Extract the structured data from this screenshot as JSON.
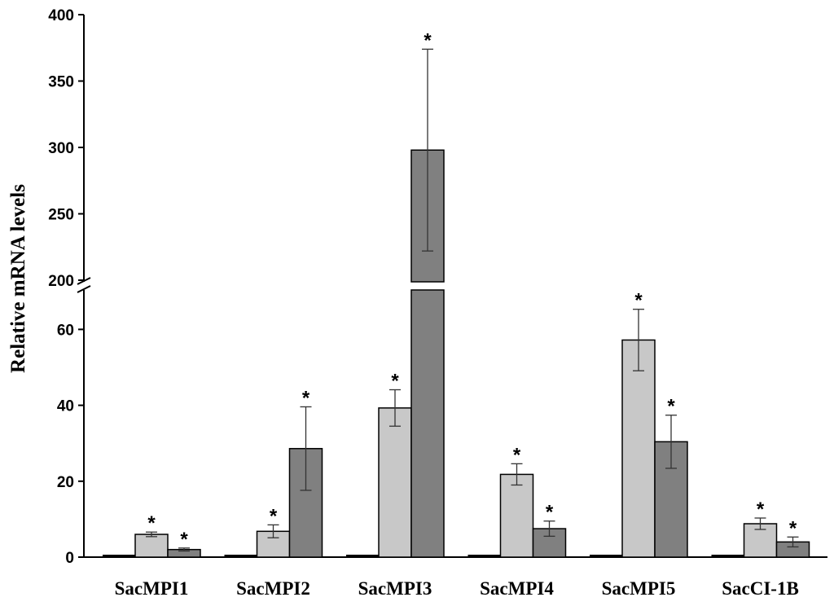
{
  "chart_data": {
    "type": "bar",
    "title": "",
    "xlabel": "",
    "ylabel": "Relative mRNA levels",
    "categories": [
      "SacMPI1",
      "SacMPI2",
      "SacMPI3",
      "SacMPI4",
      "SacMPI5",
      "SacCI-1B"
    ],
    "axis_break": {
      "lower_range": [
        0,
        70
      ],
      "upper_range": [
        200,
        400
      ]
    },
    "lower_ticks": [
      "0",
      "20",
      "40",
      "60"
    ],
    "upper_ticks": [
      "200",
      "250",
      "300",
      "350",
      "400"
    ],
    "significance_marker": "*",
    "series": [
      {
        "color": "#000000",
        "values": [
          1,
          1,
          1,
          1,
          1,
          1
        ],
        "errors": [
          0,
          0,
          0,
          0,
          0,
          0
        ],
        "significant": [
          false,
          false,
          false,
          false,
          false,
          false
        ]
      },
      {
        "color": "#c8c8c8",
        "values": [
          6,
          6.8,
          39.3,
          21.8,
          57.2,
          8.8
        ],
        "errors": [
          0.6,
          1.7,
          4.8,
          2.8,
          8.1,
          1.5
        ],
        "significant": [
          true,
          true,
          true,
          true,
          true,
          true
        ]
      },
      {
        "color": "#808080",
        "values": [
          2,
          28.6,
          298,
          7.5,
          30.4,
          4
        ],
        "errors": [
          0.4,
          11,
          76,
          2,
          7,
          1.3
        ],
        "significant": [
          true,
          true,
          false,
          true,
          true,
          true
        ]
      }
    ]
  }
}
